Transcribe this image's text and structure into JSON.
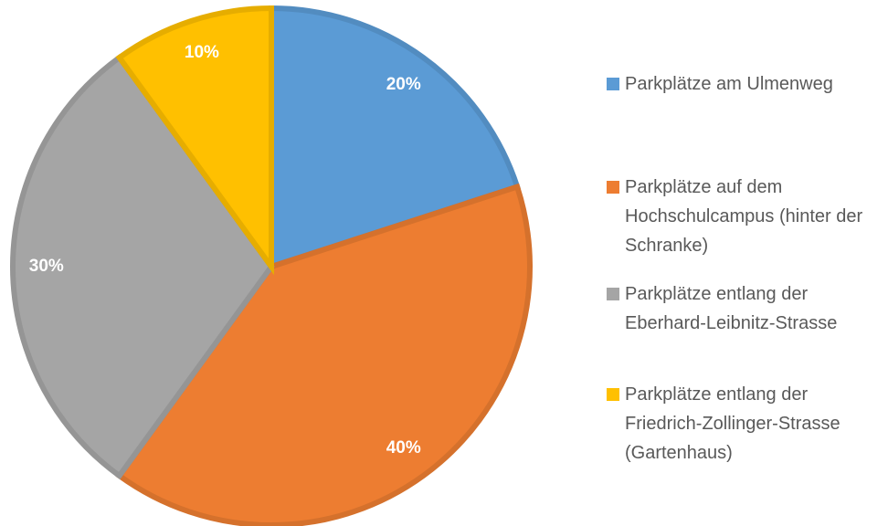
{
  "chart_data": {
    "type": "pie",
    "categories": [
      "Parkplätze am Ulmenweg",
      "Parkplätze auf dem Hochschulcampus (hinter der Schranke)",
      "Parkplätze entlang der Eberhard-Leibnitz-Strasse",
      "Parkplätze entlang der Friedrich-Zollinger-Strasse (Gartenhaus)"
    ],
    "values": [
      20,
      40,
      30,
      10
    ],
    "value_labels": [
      "20%",
      "40%",
      "30%",
      "10%"
    ],
    "colors": [
      "#5b9bd5",
      "#ed7d31",
      "#a5a5a5",
      "#ffc000"
    ],
    "legend": "right"
  }
}
